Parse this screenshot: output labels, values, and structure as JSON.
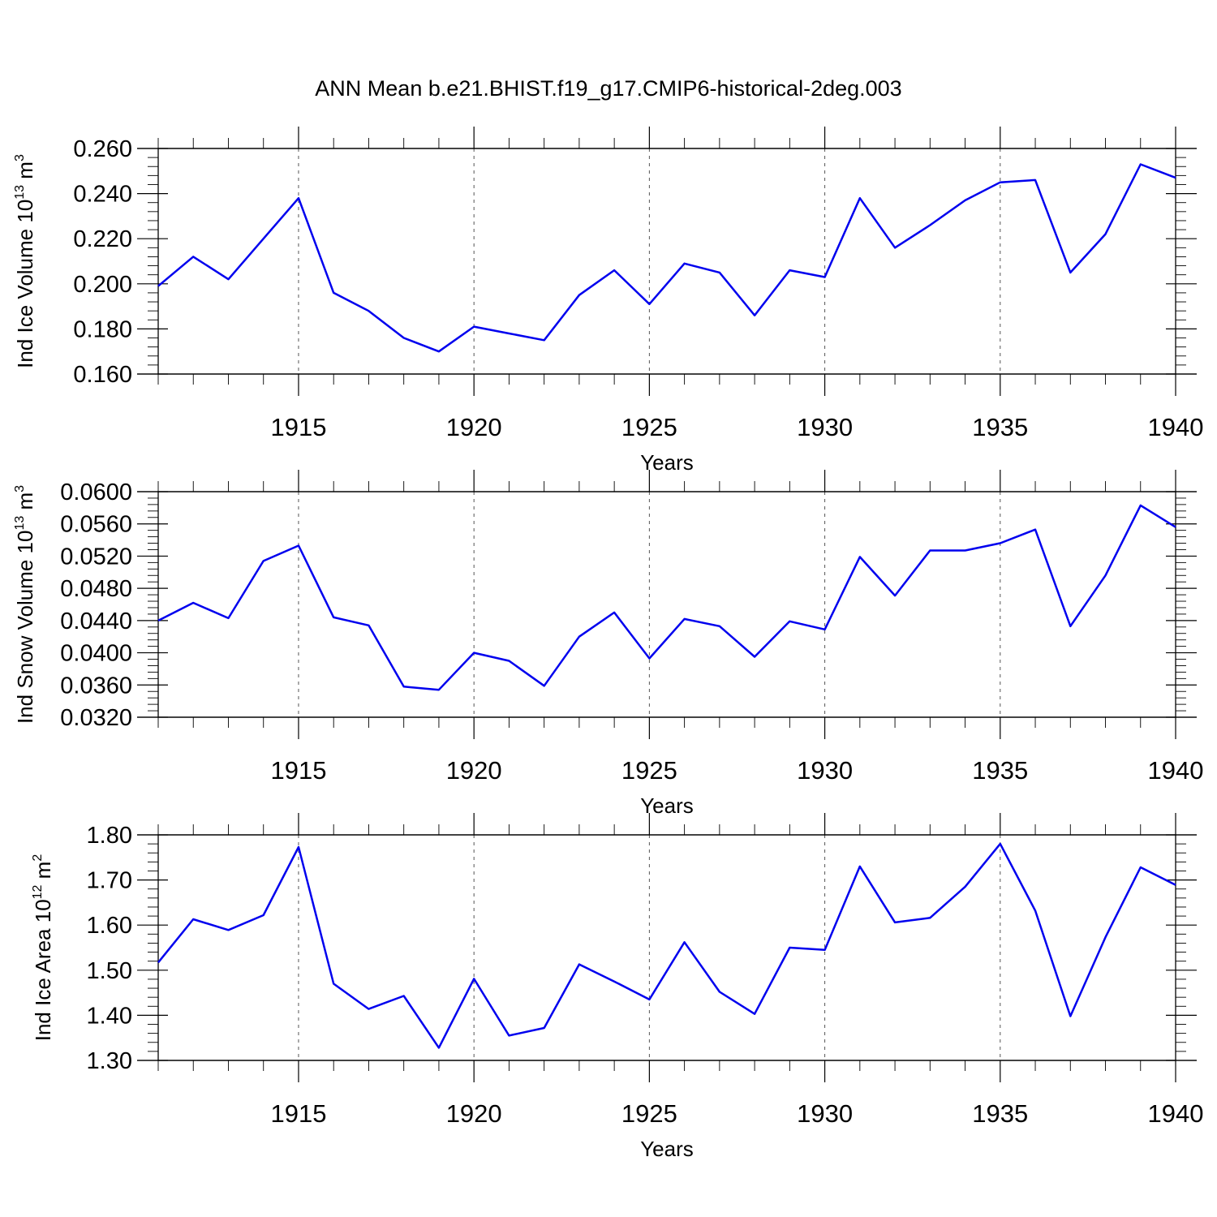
{
  "title": "ANN Mean b.e21.BHIST.f19_g17.CMIP6-historical-2deg.003",
  "chart_data": [
    {
      "type": "line",
      "ylabel": "Ind Ice Volume 10",
      "ylabel_exp": "13",
      "ylabel_unit": " m",
      "ylabel_unit_exp": "3",
      "xlabel": "Years",
      "xlim": [
        1911,
        1940
      ],
      "ylim": [
        0.16,
        0.26
      ],
      "yticks": [
        "0.160",
        "0.180",
        "0.200",
        "0.220",
        "0.240",
        "0.260"
      ],
      "xticks": [
        "1915",
        "1920",
        "1925",
        "1930",
        "1935",
        "1940"
      ],
      "x": [
        1911,
        1912,
        1913,
        1914,
        1915,
        1916,
        1917,
        1918,
        1919,
        1920,
        1921,
        1922,
        1923,
        1924,
        1925,
        1926,
        1927,
        1928,
        1929,
        1930,
        1931,
        1932,
        1933,
        1934,
        1935,
        1936,
        1937,
        1938,
        1939,
        1940
      ],
      "values": [
        0.199,
        0.212,
        0.202,
        0.22,
        0.238,
        0.196,
        0.188,
        0.176,
        0.17,
        0.181,
        0.178,
        0.175,
        0.195,
        0.206,
        0.191,
        0.209,
        0.205,
        0.186,
        0.206,
        0.203,
        0.238,
        0.216,
        0.226,
        0.237,
        0.245,
        0.246,
        0.205,
        0.222,
        0.253,
        0.247
      ]
    },
    {
      "type": "line",
      "ylabel": "Ind Snow Volume 10",
      "ylabel_exp": "13",
      "ylabel_unit": " m",
      "ylabel_unit_exp": "3",
      "xlabel": "Years",
      "xlim": [
        1911,
        1940
      ],
      "ylim": [
        0.032,
        0.06
      ],
      "yticks": [
        "0.0320",
        "0.0360",
        "0.0400",
        "0.0440",
        "0.0480",
        "0.0520",
        "0.0560",
        "0.0600"
      ],
      "xticks": [
        "1915",
        "1920",
        "1925",
        "1930",
        "1935",
        "1940"
      ],
      "x": [
        1911,
        1912,
        1913,
        1914,
        1915,
        1916,
        1917,
        1918,
        1919,
        1920,
        1921,
        1922,
        1923,
        1924,
        1925,
        1926,
        1927,
        1928,
        1929,
        1930,
        1931,
        1932,
        1933,
        1934,
        1935,
        1936,
        1937,
        1938,
        1939,
        1940
      ],
      "values": [
        0.044,
        0.0462,
        0.0443,
        0.0514,
        0.0533,
        0.0444,
        0.0434,
        0.0358,
        0.0354,
        0.04,
        0.039,
        0.0359,
        0.042,
        0.045,
        0.0393,
        0.0442,
        0.0433,
        0.0395,
        0.0439,
        0.0429,
        0.0519,
        0.0471,
        0.0527,
        0.0527,
        0.0536,
        0.0553,
        0.0433,
        0.0496,
        0.0583,
        0.0556
      ]
    },
    {
      "type": "line",
      "ylabel": "Ind Ice Area 10",
      "ylabel_exp": "12",
      "ylabel_unit": " m",
      "ylabel_unit_exp": "2",
      "xlabel": "Years",
      "xlim": [
        1911,
        1940
      ],
      "ylim": [
        1.3,
        1.8
      ],
      "yticks": [
        "1.30",
        "1.40",
        "1.50",
        "1.60",
        "1.70",
        "1.80"
      ],
      "xticks": [
        "1915",
        "1920",
        "1925",
        "1930",
        "1935",
        "1940"
      ],
      "x": [
        1911,
        1912,
        1913,
        1914,
        1915,
        1916,
        1917,
        1918,
        1919,
        1920,
        1921,
        1922,
        1923,
        1924,
        1925,
        1926,
        1927,
        1928,
        1929,
        1930,
        1931,
        1932,
        1933,
        1934,
        1935,
        1936,
        1937,
        1938,
        1939,
        1940
      ],
      "values": [
        1.517,
        1.613,
        1.589,
        1.622,
        1.773,
        1.47,
        1.414,
        1.443,
        1.328,
        1.481,
        1.355,
        1.372,
        1.513,
        1.475,
        1.435,
        1.562,
        1.452,
        1.403,
        1.55,
        1.545,
        1.73,
        1.606,
        1.616,
        1.685,
        1.78,
        1.632,
        1.398,
        1.573,
        1.728,
        1.689
      ]
    }
  ]
}
